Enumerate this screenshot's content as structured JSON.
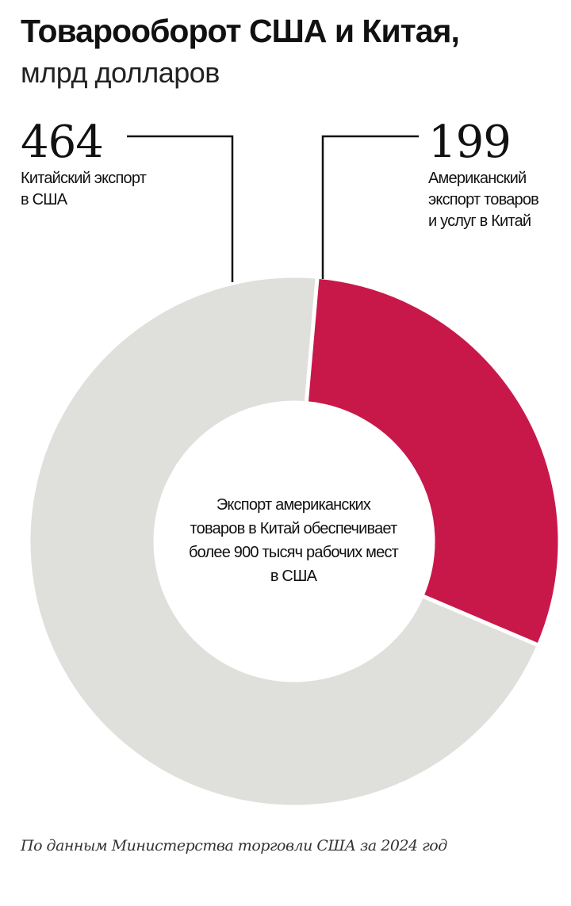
{
  "header": {
    "title": "Товарооборот США и Китая,",
    "subtitle": "млрд долларов"
  },
  "chart_data": {
    "type": "pie",
    "variant": "donut",
    "categories": [
      "Китайский экспорт в США",
      "Американский экспорт товаров и услуг в Китай"
    ],
    "values": [
      464,
      199
    ],
    "value_labels": [
      "464",
      "199"
    ],
    "category_labels": [
      [
        "Китайский экспорт",
        "в США"
      ],
      [
        "Американский",
        "экспорт товаров",
        "и услуг в Китай"
      ]
    ],
    "colors": [
      "#dfe0dc",
      "#c8184a"
    ],
    "center_note": [
      "Экспорт американских",
      "товаров в Китай обеспечивает",
      "более 900 тысяч рабочих мест",
      "в США"
    ]
  },
  "footer": {
    "source": "По данным Министерства торговли США за 2024 год"
  }
}
